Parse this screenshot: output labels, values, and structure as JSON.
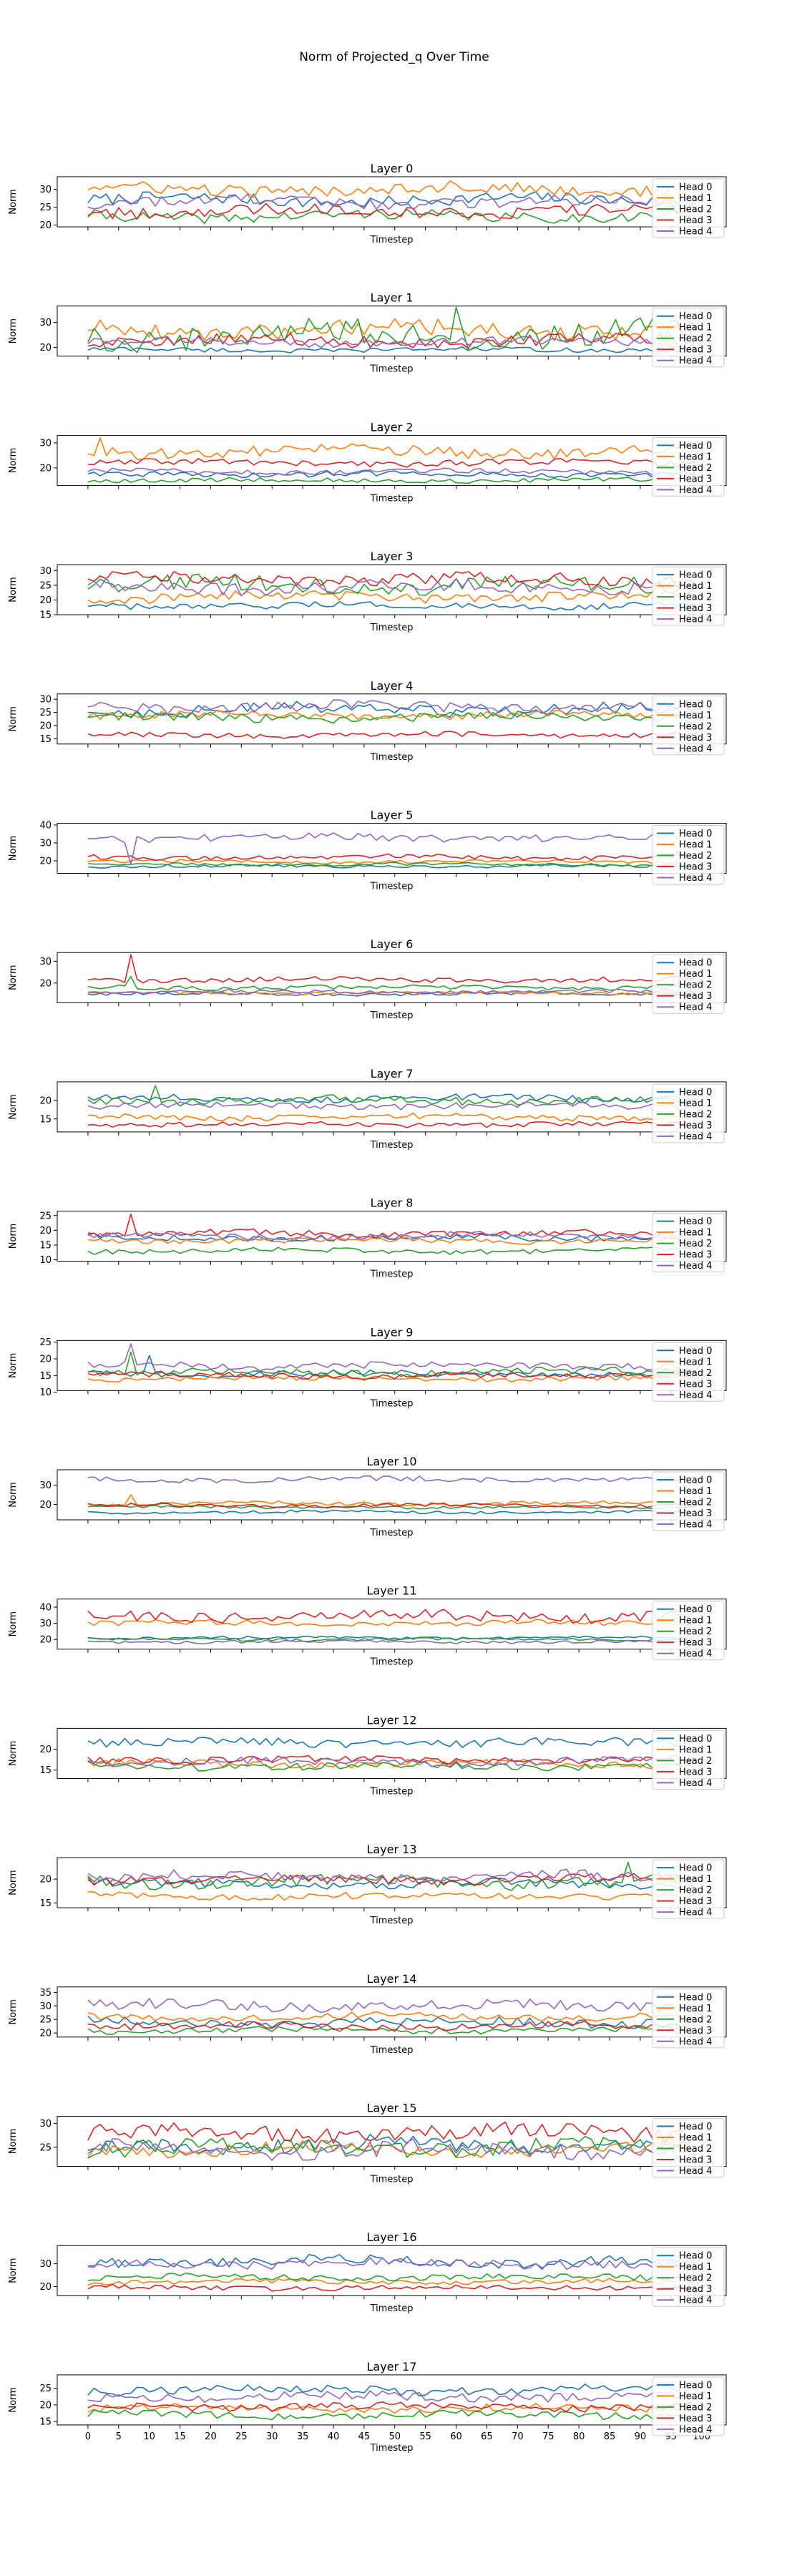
{
  "chart_data": {
    "type": "line",
    "title": "Norm of Projected_q Over Time",
    "xlabel": "Timestep",
    "ylabel": "Norm",
    "xlim": [
      -5,
      104
    ],
    "x_ticks": [
      0,
      5,
      10,
      15,
      20,
      25,
      30,
      35,
      40,
      45,
      50,
      55,
      60,
      65,
      70,
      75,
      80,
      85,
      90,
      95,
      100
    ],
    "timesteps": 100,
    "legend_position": "right",
    "grid": false,
    "series_names": [
      "Head 0",
      "Head 1",
      "Head 2",
      "Head 3",
      "Head 4"
    ],
    "colors": [
      "#1f77b4",
      "#ff7f0e",
      "#2ca02c",
      "#d62728",
      "#9467bd"
    ],
    "panels": [
      {
        "title": "Layer 0",
        "ylim": [
          19.5,
          33.5
        ],
        "yticks": [
          20,
          25,
          30
        ],
        "levels": [
          27.0,
          30.0,
          22.5,
          24.0,
          26.5
        ],
        "amplitude": [
          1.5,
          1.5,
          1.3,
          1.5,
          1.5
        ],
        "spikes": []
      },
      {
        "title": "Layer 1",
        "ylim": [
          16.5,
          36.5
        ],
        "yticks": [
          20,
          30
        ],
        "levels": [
          19.0,
          27.0,
          25.0,
          22.5,
          22.0
        ],
        "amplitude": [
          0.8,
          3.0,
          4.5,
          2.2,
          1.5
        ],
        "spikes": [
          [
            2,
            60,
            36
          ]
        ]
      },
      {
        "title": "Layer 2",
        "ylim": [
          13.0,
          33.0
        ],
        "yticks": [
          20,
          30
        ],
        "levels": [
          17.5,
          26.5,
          15.0,
          22.0,
          18.5
        ],
        "amplitude": [
          1.0,
          2.0,
          0.8,
          1.2,
          0.9
        ],
        "spikes": [
          [
            1,
            2,
            32
          ]
        ]
      },
      {
        "title": "Layer 3",
        "ylim": [
          15.0,
          32.0
        ],
        "yticks": [
          15,
          20,
          25,
          30
        ],
        "levels": [
          18.0,
          21.0,
          25.0,
          27.0,
          24.5
        ],
        "amplitude": [
          1.0,
          1.5,
          2.5,
          1.8,
          2.0
        ],
        "spikes": []
      },
      {
        "title": "Layer 4",
        "ylim": [
          13.0,
          32.0
        ],
        "yticks": [
          15,
          20,
          25,
          30
        ],
        "levels": [
          26.0,
          24.0,
          23.0,
          16.5,
          27.0
        ],
        "amplitude": [
          2.0,
          1.2,
          1.5,
          0.9,
          1.8
        ],
        "spikes": []
      },
      {
        "title": "Layer 5",
        "ylim": [
          13.0,
          41.0
        ],
        "yticks": [
          20,
          30,
          40
        ],
        "levels": [
          17.0,
          19.5,
          18.0,
          22.0,
          33.0
        ],
        "amplitude": [
          0.8,
          0.8,
          0.8,
          1.2,
          1.8
        ],
        "spikes": [
          [
            4,
            7,
            18
          ]
        ]
      },
      {
        "title": "Layer 6",
        "ylim": [
          11.0,
          34.0
        ],
        "yticks": [
          20,
          30
        ],
        "levels": [
          15.0,
          15.5,
          18.0,
          21.5,
          16.0
        ],
        "amplitude": [
          0.6,
          0.6,
          0.9,
          1.0,
          0.7
        ],
        "spikes": [
          [
            3,
            7,
            33
          ],
          [
            2,
            7,
            23
          ]
        ]
      },
      {
        "title": "Layer 7",
        "ylim": [
          11.5,
          25.0
        ],
        "yticks": [
          15,
          20
        ],
        "levels": [
          20.5,
          15.5,
          20.0,
          13.5,
          18.5
        ],
        "amplitude": [
          0.8,
          0.7,
          1.0,
          0.6,
          0.8
        ],
        "spikes": [
          [
            2,
            11,
            24
          ]
        ]
      },
      {
        "title": "Layer 8",
        "ylim": [
          9.5,
          26.5
        ],
        "yticks": [
          10,
          15,
          20,
          25
        ],
        "levels": [
          17.5,
          16.5,
          13.0,
          19.0,
          18.0
        ],
        "amplitude": [
          1.0,
          0.8,
          0.8,
          1.0,
          1.0
        ],
        "spikes": [
          [
            3,
            7,
            25.5
          ]
        ]
      },
      {
        "title": "Layer 9",
        "ylim": [
          10.5,
          25.5
        ],
        "yticks": [
          10,
          15,
          20,
          25
        ],
        "levels": [
          15.5,
          14.0,
          16.0,
          15.0,
          18.0
        ],
        "amplitude": [
          0.8,
          0.7,
          1.0,
          0.8,
          1.0
        ],
        "spikes": [
          [
            4,
            7,
            24.5
          ],
          [
            0,
            10,
            21
          ],
          [
            2,
            7,
            22
          ]
        ]
      },
      {
        "title": "Layer 10",
        "ylim": [
          12.0,
          38.0
        ],
        "yticks": [
          20,
          30
        ],
        "levels": [
          16.0,
          20.5,
          18.5,
          19.5,
          33.0
        ],
        "amplitude": [
          0.7,
          0.9,
          0.7,
          0.8,
          1.2
        ],
        "spikes": [
          [
            1,
            7,
            25
          ]
        ]
      },
      {
        "title": "Layer 11",
        "ylim": [
          14.0,
          45.0
        ],
        "yticks": [
          20,
          30,
          40
        ],
        "levels": [
          21.0,
          30.0,
          20.0,
          34.5,
          18.5
        ],
        "amplitude": [
          0.8,
          1.5,
          0.8,
          3.0,
          0.8
        ],
        "spikes": []
      },
      {
        "title": "Layer 12",
        "ylim": [
          13.0,
          25.0
        ],
        "yticks": [
          15,
          20
        ],
        "levels": [
          21.5,
          16.5,
          16.0,
          17.5,
          17.0
        ],
        "amplitude": [
          1.0,
          0.8,
          0.8,
          0.8,
          0.8
        ],
        "spikes": []
      },
      {
        "title": "Layer 13",
        "ylim": [
          14.0,
          24.5
        ],
        "yticks": [
          15,
          20
        ],
        "levels": [
          19.0,
          16.5,
          19.5,
          20.0,
          20.5
        ],
        "amplitude": [
          0.8,
          0.6,
          1.2,
          0.8,
          1.0
        ],
        "spikes": [
          [
            2,
            88,
            23.5
          ]
        ]
      },
      {
        "title": "Layer 14",
        "ylim": [
          18.5,
          37.0
        ],
        "yticks": [
          20,
          25,
          30,
          35
        ],
        "levels": [
          24.0,
          26.0,
          21.0,
          22.5,
          30.0
        ],
        "amplitude": [
          1.5,
          1.2,
          1.0,
          1.2,
          1.8
        ],
        "spikes": []
      },
      {
        "title": "Layer 15",
        "ylim": [
          21.0,
          31.5
        ],
        "yticks": [
          25,
          30
        ],
        "levels": [
          25.5,
          24.5,
          25.0,
          28.0,
          24.5
        ],
        "amplitude": [
          1.5,
          1.2,
          1.5,
          1.5,
          1.5
        ],
        "spikes": []
      },
      {
        "title": "Layer 16",
        "ylim": [
          16.0,
          38.0
        ],
        "yticks": [
          20,
          30
        ],
        "levels": [
          31.0,
          22.0,
          24.0,
          19.5,
          30.0
        ],
        "amplitude": [
          2.0,
          1.0,
          1.2,
          1.0,
          1.8
        ],
        "spikes": []
      },
      {
        "title": "Layer 17",
        "ylim": [
          14.0,
          29.0
        ],
        "yticks": [
          15,
          20,
          25
        ],
        "levels": [
          24.5,
          19.0,
          17.0,
          19.5,
          22.5
        ],
        "amplitude": [
          1.2,
          1.0,
          1.0,
          1.0,
          1.2
        ],
        "spikes": []
      }
    ]
  }
}
